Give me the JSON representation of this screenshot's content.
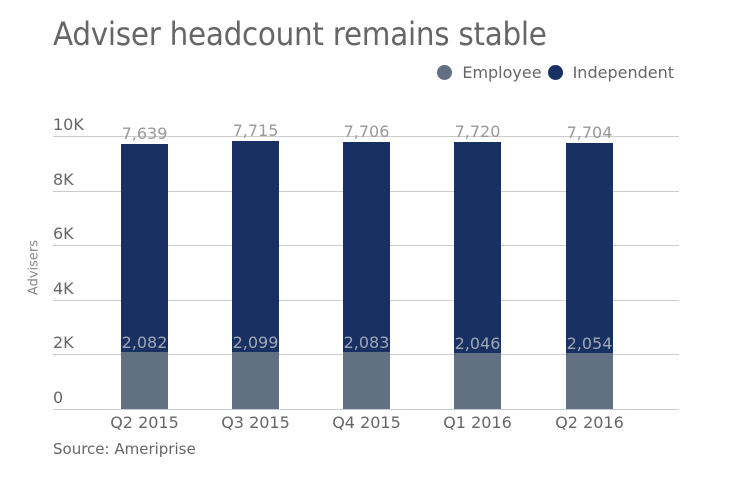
{
  "title": "Adviser headcount remains stable",
  "legend": [
    {
      "label": "Employee",
      "color": "#627083"
    },
    {
      "label": "Independent",
      "color": "#193063"
    }
  ],
  "y_axis": {
    "label": "Advisers",
    "ticks": [
      "0",
      "2K",
      "4K",
      "6K",
      "8K",
      "10K"
    ]
  },
  "source": "Source: Ameriprise",
  "colors": {
    "employee": "#627083",
    "independent": "#193063",
    "gridline": "#cccccc",
    "text": "#666666"
  },
  "chart_data": {
    "type": "bar",
    "stacked": true,
    "title": "Adviser headcount remains stable",
    "xlabel": "",
    "ylabel": "Advisers",
    "ylim": [
      0,
      10000
    ],
    "yticks": [
      0,
      2000,
      4000,
      6000,
      8000,
      10000
    ],
    "ytick_labels": [
      "0",
      "2K",
      "4K",
      "6K",
      "8K",
      "10K"
    ],
    "grid": true,
    "legend_position": "top-right",
    "categories": [
      "Q2 2015",
      "Q3 2015",
      "Q4 2015",
      "Q1 2016",
      "Q2 2016"
    ],
    "series": [
      {
        "name": "Employee",
        "color": "#627083",
        "values": [
          2082,
          2099,
          2083,
          2046,
          2054
        ],
        "labels": [
          "2,082",
          "2,099",
          "2,083",
          "2,046",
          "2,054"
        ]
      },
      {
        "name": "Independent",
        "color": "#193063",
        "values": [
          7639,
          7715,
          7706,
          7720,
          7704
        ],
        "labels": [
          "7,639",
          "7,715",
          "7,706",
          "7,720",
          "7,704"
        ]
      }
    ],
    "annotations": [
      "Source: Ameriprise"
    ]
  }
}
